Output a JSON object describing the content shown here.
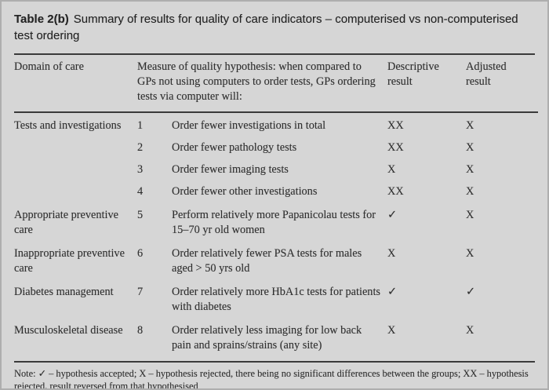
{
  "page": {
    "title_label": "Table 2(b)",
    "title_text": "Summary of results for quality of care indicators – computerised vs non-computerised test ordering"
  },
  "table": {
    "columns": {
      "domain": "Domain of care",
      "measure": "Measure of quality hypothesis: when compared to GPs not using computers to order tests, GPs ordering tests via computer will:",
      "descriptive": "Descriptive result",
      "adjusted": "Adjusted result"
    },
    "groups": [
      {
        "domain": "Tests and investigations",
        "items": [
          {
            "num": "1",
            "measure": "Order fewer investigations in total",
            "descriptive": "XX",
            "adjusted": "X"
          },
          {
            "num": "2",
            "measure": "Order fewer pathology tests",
            "descriptive": "XX",
            "adjusted": "X"
          },
          {
            "num": "3",
            "measure": "Order fewer imaging tests",
            "descriptive": "X",
            "adjusted": "X"
          },
          {
            "num": "4",
            "measure": "Order fewer other investigations",
            "descriptive": "XX",
            "adjusted": "X"
          }
        ]
      },
      {
        "domain": "Appropriate preventive care",
        "items": [
          {
            "num": "5",
            "measure": "Perform relatively more Papanicolau tests for 15–70 yr old women",
            "descriptive": "✓",
            "adjusted": "X"
          }
        ]
      },
      {
        "domain": "Inappropriate preventive care",
        "items": [
          {
            "num": "6",
            "measure": "Order relatively fewer PSA tests for males aged > 50 yrs old",
            "descriptive": "X",
            "adjusted": "X"
          }
        ]
      },
      {
        "domain": "Diabetes management",
        "items": [
          {
            "num": "7",
            "measure": "Order relatively more HbA1c tests for patients with diabetes",
            "descriptive": "✓",
            "adjusted": "✓"
          }
        ]
      },
      {
        "domain": "Musculoskeletal disease",
        "items": [
          {
            "num": "8",
            "measure": "Order relatively less imaging for low back pain and sprains/strains (any site)",
            "descriptive": "X",
            "adjusted": "X"
          }
        ]
      }
    ],
    "note": "Note: ✓ – hypothesis accepted; X – hypothesis rejected, there being no significant differences between the groups; XX – hypothesis rejected, result reversed from that hypothesised"
  },
  "colors": {
    "background": "#d6d6d6",
    "text": "#2f2f2f",
    "rule": "#3a3a3a",
    "border": "#aeaeae"
  }
}
